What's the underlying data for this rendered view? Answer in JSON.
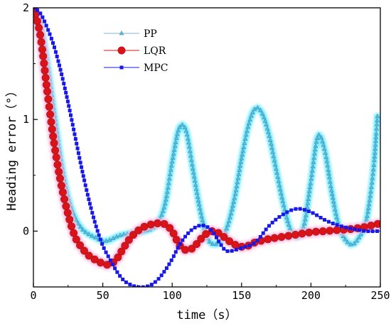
{
  "chart_data": {
    "type": "line",
    "title": "",
    "xlabel": "time（s）",
    "ylabel": "Heading error（°）",
    "xlim": [
      0,
      250
    ],
    "ylim": [
      -0.5,
      2
    ],
    "xticks": [
      0,
      50,
      100,
      150,
      200,
      250
    ],
    "yticks": [
      0,
      1,
      2
    ],
    "grid": false,
    "legend": "top-left",
    "series": [
      {
        "name": "PP",
        "color": "#8ab0d0",
        "glow": "#5fe8ff",
        "marker": "triangle",
        "x": [
          0,
          5,
          10,
          15,
          20,
          25,
          30,
          35,
          40,
          45,
          50,
          55,
          60,
          65,
          70,
          75,
          80,
          85,
          90,
          95,
          100,
          105,
          110,
          115,
          120,
          125,
          130,
          135,
          140,
          145,
          150,
          155,
          160,
          165,
          170,
          175,
          180,
          185,
          190,
          195,
          200,
          205,
          210,
          215,
          220,
          225,
          230,
          235,
          240,
          245,
          248
        ],
        "y": [
          2.0,
          1.85,
          1.5,
          1.05,
          0.62,
          0.3,
          0.12,
          0.02,
          -0.03,
          -0.06,
          -0.09,
          -0.08,
          -0.05,
          -0.03,
          -0.02,
          -0.01,
          0.0,
          0.02,
          0.08,
          0.25,
          0.62,
          0.92,
          0.9,
          0.55,
          0.2,
          -0.05,
          -0.12,
          -0.08,
          0.05,
          0.3,
          0.65,
          0.95,
          1.1,
          1.05,
          0.85,
          0.55,
          0.25,
          0.02,
          -0.05,
          0.05,
          0.45,
          0.85,
          0.72,
          0.35,
          0.05,
          -0.08,
          -0.12,
          -0.05,
          0.1,
          0.55,
          1.05
        ]
      },
      {
        "name": "LQR",
        "color": "#d8141a",
        "glow": "#ffb6e0",
        "marker": "circle",
        "x": [
          0,
          5,
          10,
          15,
          20,
          25,
          30,
          35,
          40,
          45,
          50,
          55,
          60,
          65,
          70,
          75,
          80,
          85,
          90,
          95,
          100,
          105,
          110,
          115,
          120,
          125,
          130,
          135,
          140,
          145,
          150,
          155,
          160,
          170,
          180,
          190,
          200,
          210,
          220,
          230,
          240,
          250
        ],
        "y": [
          2.0,
          1.75,
          1.25,
          0.78,
          0.42,
          0.15,
          -0.05,
          -0.15,
          -0.22,
          -0.26,
          -0.29,
          -0.3,
          -0.25,
          -0.15,
          -0.06,
          0.0,
          0.04,
          0.06,
          0.07,
          0.06,
          0.0,
          -0.12,
          -0.17,
          -0.15,
          -0.08,
          -0.02,
          0.0,
          -0.03,
          -0.08,
          -0.12,
          -0.14,
          -0.13,
          -0.1,
          -0.07,
          -0.05,
          -0.03,
          -0.01,
          0.0,
          0.01,
          0.02,
          0.04,
          0.07
        ]
      },
      {
        "name": "MPC",
        "color": "#1818e8",
        "glow": "none",
        "marker": "square",
        "x": [
          0,
          5,
          10,
          15,
          20,
          25,
          30,
          35,
          40,
          45,
          50,
          55,
          60,
          65,
          70,
          75,
          80,
          85,
          90,
          95,
          100,
          105,
          110,
          115,
          120,
          125,
          130,
          135,
          140,
          150,
          160,
          170,
          180,
          190,
          200,
          210,
          220,
          230,
          240,
          250
        ],
        "y": [
          2.0,
          1.95,
          1.82,
          1.65,
          1.42,
          1.15,
          0.85,
          0.55,
          0.28,
          0.05,
          -0.13,
          -0.25,
          -0.36,
          -0.44,
          -0.48,
          -0.5,
          -0.5,
          -0.48,
          -0.43,
          -0.35,
          -0.25,
          -0.13,
          -0.04,
          0.02,
          0.05,
          0.04,
          -0.02,
          -0.12,
          -0.18,
          -0.15,
          -0.1,
          0.05,
          0.15,
          0.2,
          0.17,
          0.1,
          0.05,
          0.02,
          0.0,
          0.0
        ]
      }
    ]
  }
}
